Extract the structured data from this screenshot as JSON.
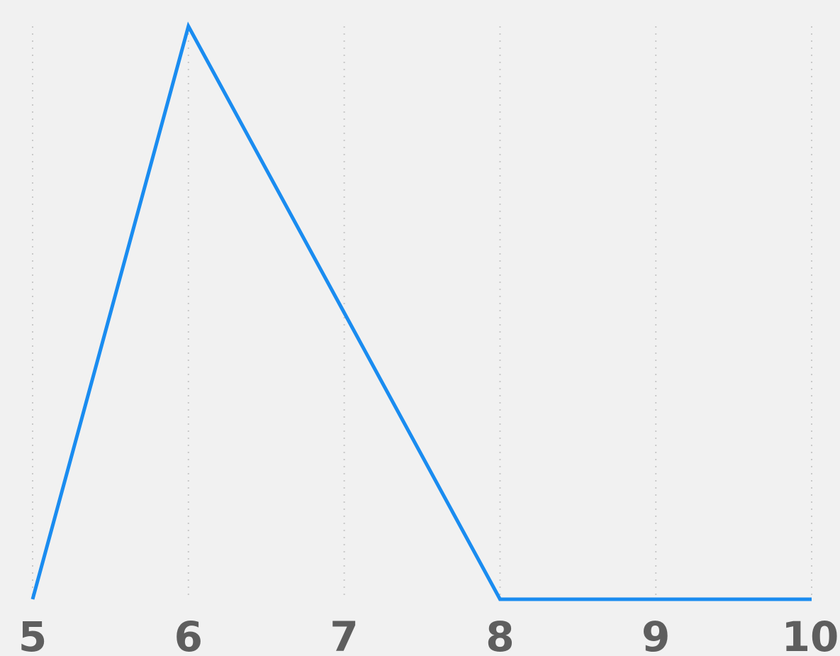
{
  "chart_data": {
    "type": "line",
    "x": [
      5,
      6,
      7,
      8,
      9,
      10
    ],
    "xticks": [
      "5",
      "6",
      "7",
      "8",
      "9",
      "10"
    ],
    "xlim": [
      5,
      10
    ],
    "ylim": [
      0,
      1
    ],
    "grid": {
      "x": true,
      "y": false,
      "style": "dotted"
    },
    "series": [
      {
        "values": [
          0,
          1,
          0.5,
          0,
          0,
          0
        ]
      }
    ],
    "colors": {
      "line": "#1a8cf0",
      "grid": "#c9c9c9",
      "tick_text": "#5e5e5e",
      "background": "#f1f1f1"
    }
  }
}
